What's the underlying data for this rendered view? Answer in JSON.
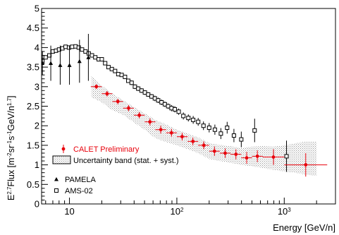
{
  "chart_data": {
    "type": "scatter",
    "title": "",
    "xlabel": "Energy [GeV/n]",
    "ylabel": "E^{2.7}Flux [m^{-2}sr^{-1}s^{-1}GeV/n^{1.7}]",
    "xscale": "log",
    "xlim": [
      5.5,
      3000
    ],
    "ylim": [
      0,
      5
    ],
    "y_ticks": [
      "0",
      "0.5",
      "1",
      "1.5",
      "2",
      "2.5",
      "3",
      "3.5",
      "4",
      "4.5",
      "5"
    ],
    "x_ticks": [
      {
        "value": 10,
        "label": "10"
      },
      {
        "value": 100,
        "label": "10",
        "exponent": "2"
      },
      {
        "value": 1000,
        "label": "10",
        "exponent": "3"
      }
    ],
    "grid": false,
    "legend": [
      {
        "label": "CALET Preliminary",
        "marker": "red-circle-errorbar",
        "color": "#e8000b"
      },
      {
        "label": "Uncertainty band (stat. + syst.)",
        "marker": "hatched-box"
      },
      {
        "label": "PAMELA",
        "marker": "triangle",
        "color": "#000000"
      },
      {
        "label": "AMS-02",
        "marker": "open-square",
        "color": "#000000"
      }
    ],
    "legend_position": "bottom-left",
    "series": [
      {
        "name": "CALET Preliminary",
        "color": "#e8000b",
        "x": [
          17.8,
          22.4,
          28.2,
          35.5,
          44.7,
          56.2,
          70.8,
          89.1,
          112,
          141,
          178,
          224,
          282,
          355,
          447,
          562,
          794,
          1585
        ],
        "y": [
          3.0,
          2.82,
          2.62,
          2.45,
          2.27,
          2.1,
          1.9,
          1.82,
          1.72,
          1.6,
          1.5,
          1.35,
          1.3,
          1.27,
          1.18,
          1.22,
          1.2,
          1.0
        ],
        "x_lo": [
          15.8,
          20.0,
          25.1,
          31.6,
          39.8,
          50.1,
          63.1,
          79.4,
          100,
          126,
          158,
          200,
          251,
          316,
          398,
          501,
          631,
          1000
        ],
        "x_hi": [
          20.0,
          25.1,
          31.6,
          39.8,
          50.1,
          63.1,
          79.4,
          100,
          126,
          158,
          200,
          251,
          316,
          398,
          501,
          631,
          1000,
          2512
        ],
        "yerr": [
          0.06,
          0.07,
          0.07,
          0.08,
          0.08,
          0.09,
          0.1,
          0.1,
          0.1,
          0.1,
          0.1,
          0.12,
          0.12,
          0.13,
          0.15,
          0.15,
          0.2,
          0.3
        ]
      },
      {
        "name": "Uncertainty band (stat. + syst.)",
        "band_x": [
          16,
          20,
          25,
          32,
          40,
          50,
          63,
          80,
          100,
          126,
          158,
          200,
          251,
          316,
          398,
          501,
          631,
          794,
          1000,
          1259,
          1585,
          2000
        ],
        "band_upper": [
          3.27,
          3.03,
          2.83,
          2.64,
          2.48,
          2.32,
          2.15,
          2.03,
          1.9,
          1.8,
          1.7,
          1.56,
          1.51,
          1.48,
          1.43,
          1.47,
          1.48,
          1.47,
          1.5,
          1.55,
          1.6,
          1.6
        ],
        "band_lower": [
          2.73,
          2.6,
          2.4,
          2.27,
          2.08,
          1.9,
          1.68,
          1.58,
          1.5,
          1.4,
          1.3,
          1.15,
          1.1,
          1.05,
          1.0,
          0.96,
          0.92,
          0.87,
          0.83,
          0.8,
          0.75,
          0.72
        ]
      },
      {
        "name": "PAMELA",
        "color": "#000000",
        "x": [
          5.6,
          6.7,
          8.2,
          10.0,
          12.4,
          15.0
        ],
        "y": [
          3.6,
          3.6,
          3.55,
          3.55,
          3.65,
          3.75
        ],
        "yerr": [
          0.3,
          0.45,
          0.5,
          0.5,
          0.55,
          0.6
        ]
      },
      {
        "name": "AMS-02",
        "color": "#000000",
        "x": [
          5.6,
          6.0,
          6.5,
          7.0,
          7.5,
          8.0,
          8.6,
          9.2,
          9.9,
          10.6,
          11.4,
          12.2,
          13.1,
          14.1,
          15.1,
          16.2,
          17.4,
          18.7,
          20.0,
          21.5,
          23.1,
          24.8,
          26.6,
          28.5,
          30.6,
          32.9,
          35.3,
          37.9,
          40.7,
          43.7,
          46.9,
          50.4,
          54.1,
          58.1,
          62.4,
          67.0,
          72.0,
          77.3,
          83.0,
          89.2,
          95.8,
          104,
          115,
          128,
          142,
          158,
          177,
          200,
          226,
          257,
          294,
          340,
          398,
          530,
          1050
        ],
        "y": [
          3.67,
          3.75,
          3.8,
          3.9,
          3.92,
          3.95,
          3.98,
          4.02,
          4.0,
          4.02,
          4.03,
          4.0,
          3.95,
          3.9,
          3.85,
          3.8,
          3.75,
          3.7,
          3.7,
          3.6,
          3.5,
          3.45,
          3.4,
          3.32,
          3.3,
          3.25,
          3.15,
          3.1,
          3.0,
          2.95,
          2.9,
          2.85,
          2.8,
          2.75,
          2.7,
          2.65,
          2.6,
          2.55,
          2.5,
          2.45,
          2.42,
          2.36,
          2.25,
          2.2,
          2.15,
          2.1,
          2.0,
          1.95,
          1.9,
          1.8,
          1.95,
          1.75,
          1.65,
          1.88,
          1.22
        ],
        "yerr": [
          0.04,
          0.04,
          0.04,
          0.04,
          0.04,
          0.04,
          0.04,
          0.04,
          0.04,
          0.04,
          0.04,
          0.04,
          0.04,
          0.04,
          0.04,
          0.05,
          0.05,
          0.05,
          0.05,
          0.05,
          0.05,
          0.05,
          0.05,
          0.05,
          0.05,
          0.05,
          0.05,
          0.06,
          0.06,
          0.06,
          0.06,
          0.06,
          0.06,
          0.06,
          0.07,
          0.07,
          0.07,
          0.07,
          0.07,
          0.08,
          0.08,
          0.08,
          0.09,
          0.09,
          0.1,
          0.1,
          0.11,
          0.12,
          0.13,
          0.14,
          0.15,
          0.17,
          0.2,
          0.3,
          0.4
        ]
      }
    ]
  }
}
